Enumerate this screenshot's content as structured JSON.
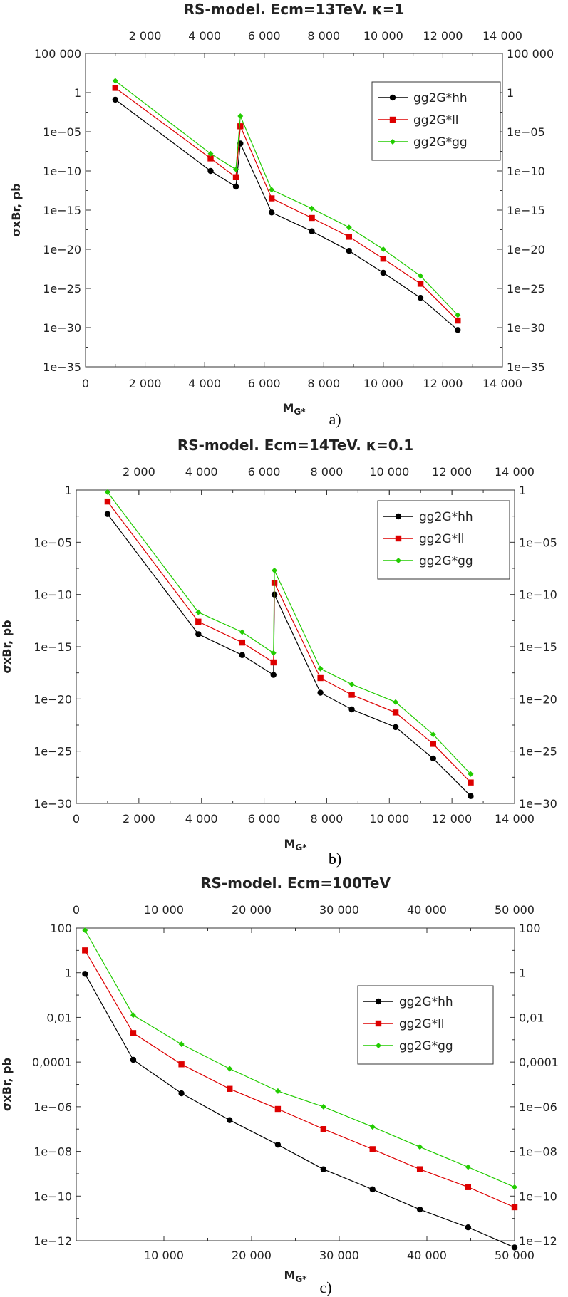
{
  "chart_data": [
    {
      "type": "line",
      "panel_label": "a)",
      "title": "RS-model. Ecm=13TeV. κ=1",
      "xlabel": "MG*",
      "xlabel_main": "M",
      "xlabel_sub": "G*",
      "ylabel": "σxBr, pb",
      "yscale": "log",
      "xlim": [
        0,
        14000
      ],
      "ylim_log10": [
        -35,
        5
      ],
      "x_ticks": [
        0,
        2000,
        4000,
        6000,
        8000,
        10000,
        12000,
        14000
      ],
      "x_tick_labels": [
        "0",
        "2 000",
        "4 000",
        "6 000",
        "8 000",
        "10 000",
        "12 000",
        "14 000"
      ],
      "top_x_tick_labels": [
        "2 000",
        "4 000",
        "6 000",
        "8 000",
        "10 000",
        "12 000",
        "14 000"
      ],
      "y_ticks_log10": [
        5,
        0,
        -5,
        -10,
        -15,
        -20,
        -25,
        -30,
        -35
      ],
      "y_tick_labels": [
        "100 000",
        "1",
        "1e−05",
        "1e−10",
        "1e−15",
        "1e−20",
        "1e−25",
        "1e−30",
        "1e−35"
      ],
      "legend_position": "top-right",
      "series": [
        {
          "name": "gg2G*hh",
          "color": "#000000",
          "marker": "circle",
          "x": [
            1000,
            4200,
            5050,
            5200,
            6250,
            7600,
            8850,
            10000,
            11250,
            12500
          ],
          "log10_y": [
            -0.9,
            -10.0,
            -12.0,
            -6.5,
            -15.3,
            -17.7,
            -20.2,
            -23.0,
            -26.2,
            -30.3
          ]
        },
        {
          "name": "gg2G*ll",
          "color": "#dd0000",
          "marker": "square",
          "x": [
            1000,
            4200,
            5050,
            5200,
            6250,
            7600,
            8850,
            10000,
            11250,
            12500
          ],
          "log10_y": [
            0.6,
            -8.4,
            -10.8,
            -4.3,
            -13.5,
            -16.0,
            -18.4,
            -21.2,
            -24.4,
            -29.1
          ]
        },
        {
          "name": "gg2G*gg",
          "color": "#22cc00",
          "marker": "diamond",
          "x": [
            1000,
            4200,
            5050,
            5200,
            6250,
            7600,
            8850,
            10000,
            11250,
            12500
          ],
          "log10_y": [
            1.5,
            -7.8,
            -9.8,
            -3.0,
            -12.4,
            -14.8,
            -17.2,
            -20.0,
            -23.4,
            -28.4
          ]
        }
      ]
    },
    {
      "type": "line",
      "panel_label": "b)",
      "title": "RS-model. Ecm=14TeV. κ=0.1",
      "xlabel": "MG*",
      "xlabel_main": "M",
      "xlabel_sub": "G*",
      "ylabel": "σxBr, pb",
      "yscale": "log",
      "xlim": [
        0,
        14000
      ],
      "ylim_log10": [
        -30,
        0
      ],
      "x_ticks": [
        0,
        2000,
        4000,
        6000,
        8000,
        10000,
        12000,
        14000
      ],
      "x_tick_labels": [
        "0",
        "2 000",
        "4 000",
        "6 000",
        "8 000",
        "10 000",
        "12 000",
        "14 000"
      ],
      "top_x_tick_labels": [
        "2 000",
        "4 000",
        "6 000",
        "8 000",
        "10 000",
        "12 000",
        "14 000"
      ],
      "y_ticks_log10": [
        0,
        -5,
        -10,
        -15,
        -20,
        -25,
        -30
      ],
      "y_tick_labels": [
        "1",
        "1e−05",
        "1e−10",
        "1e−15",
        "1e−20",
        "1e−25",
        "1e−30"
      ],
      "legend_position": "top-right",
      "series": [
        {
          "name": "gg2G*hh",
          "color": "#000000",
          "marker": "circle",
          "x": [
            1000,
            3900,
            5300,
            6300,
            6330,
            7800,
            8800,
            10200,
            11400,
            12600
          ],
          "log10_y": [
            -2.3,
            -13.8,
            -15.8,
            -17.7,
            -10.0,
            -19.4,
            -21.0,
            -22.7,
            -25.7,
            -29.3
          ]
        },
        {
          "name": "gg2G*ll",
          "color": "#dd0000",
          "marker": "square",
          "x": [
            1000,
            3900,
            5300,
            6300,
            6330,
            7800,
            8800,
            10200,
            11400,
            12600
          ],
          "log10_y": [
            -1.1,
            -12.6,
            -14.6,
            -16.5,
            -8.9,
            -18.0,
            -19.6,
            -21.3,
            -24.3,
            -28.0
          ]
        },
        {
          "name": "gg2G*gg",
          "color": "#22cc00",
          "marker": "diamond",
          "x": [
            1000,
            3900,
            5300,
            6300,
            6330,
            7800,
            8800,
            10200,
            11400,
            12600
          ],
          "log10_y": [
            -0.2,
            -11.7,
            -13.6,
            -15.6,
            -7.7,
            -17.1,
            -18.6,
            -20.3,
            -23.4,
            -27.2
          ]
        }
      ]
    },
    {
      "type": "line",
      "panel_label": "c)",
      "title": "RS-model. Ecm=100TeV",
      "xlabel": "MG*",
      "xlabel_main": "M",
      "xlabel_sub": "G*",
      "ylabel": "σxBr, pb",
      "yscale": "log",
      "xlim": [
        0,
        50000
      ],
      "ylim_log10": [
        -12,
        2
      ],
      "x_ticks": [
        10000,
        20000,
        30000,
        40000,
        50000
      ],
      "x_tick_labels": [
        "10 000",
        "20 000",
        "30 000",
        "40 000",
        "50 000"
      ],
      "top_x_tick_labels": [
        "0",
        "10 000",
        "20 000",
        "30 000",
        "40 000",
        "50 000"
      ],
      "y_ticks_log10": [
        2,
        0,
        -2,
        -4,
        -6,
        -8,
        -10,
        -12
      ],
      "y_tick_labels": [
        "100",
        "1",
        "0,01",
        "0,0001",
        "1e−06",
        "1e−08",
        "1e−10",
        "1e−12"
      ],
      "legend_position": "top-right",
      "series": [
        {
          "name": "gg2G*hh",
          "color": "#000000",
          "marker": "circle",
          "x": [
            1000,
            6500,
            12000,
            17500,
            23000,
            28200,
            33800,
            39200,
            44700,
            50000
          ],
          "log10_y": [
            -0.05,
            -3.9,
            -5.4,
            -6.6,
            -7.7,
            -8.8,
            -9.7,
            -10.6,
            -11.4,
            -12.3
          ]
        },
        {
          "name": "gg2G*ll",
          "color": "#dd0000",
          "marker": "square",
          "x": [
            1000,
            6500,
            12000,
            17500,
            23000,
            28200,
            33800,
            39200,
            44700,
            50000
          ],
          "log10_y": [
            1.0,
            -2.7,
            -4.1,
            -5.2,
            -6.1,
            -7.0,
            -7.9,
            -8.8,
            -9.6,
            -10.5
          ]
        },
        {
          "name": "gg2G*gg",
          "color": "#22cc00",
          "marker": "diamond",
          "x": [
            1000,
            6500,
            12000,
            17500,
            23000,
            28200,
            33800,
            39200,
            44700,
            50000
          ],
          "log10_y": [
            1.9,
            -1.9,
            -3.2,
            -4.3,
            -5.3,
            -6.0,
            -6.9,
            -7.8,
            -8.7,
            -9.6
          ]
        }
      ]
    }
  ]
}
